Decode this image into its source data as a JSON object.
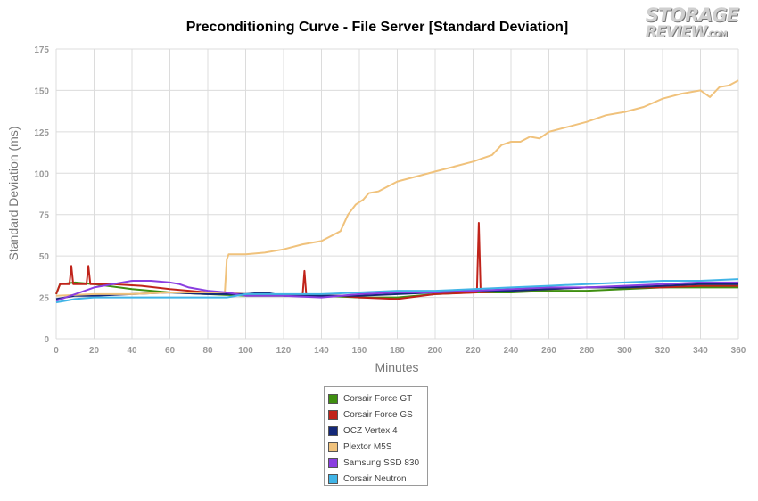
{
  "logo": {
    "line1": "STORAGE",
    "line2": "REVIEW",
    "suffix": ".COM"
  },
  "chart_data": {
    "type": "line",
    "title": "Preconditioning Curve - File Server [Standard Deviation]",
    "xlabel": "Minutes",
    "ylabel": "Standard Deviation (ms)",
    "xlim": [
      0,
      360
    ],
    "ylim": [
      0,
      175
    ],
    "xticks": [
      0,
      20,
      40,
      60,
      80,
      100,
      120,
      140,
      160,
      180,
      200,
      220,
      240,
      260,
      280,
      300,
      320,
      340,
      360
    ],
    "yticks": [
      0,
      25,
      50,
      75,
      100,
      125,
      150,
      175
    ],
    "grid": true,
    "legend_position": "bottom",
    "series": [
      {
        "name": "Corsair Force GT",
        "color": "#3f8f10",
        "points": [
          [
            0,
            27
          ],
          [
            2,
            33
          ],
          [
            10,
            34
          ],
          [
            20,
            33
          ],
          [
            40,
            30
          ],
          [
            60,
            28
          ],
          [
            80,
            27
          ],
          [
            100,
            26
          ],
          [
            120,
            26
          ],
          [
            140,
            26
          ],
          [
            160,
            25
          ],
          [
            180,
            25
          ],
          [
            200,
            27
          ],
          [
            220,
            28
          ],
          [
            240,
            28
          ],
          [
            260,
            29
          ],
          [
            280,
            29
          ],
          [
            300,
            30
          ],
          [
            320,
            31
          ],
          [
            340,
            31
          ],
          [
            360,
            31
          ]
        ]
      },
      {
        "name": "Corsair Force GS",
        "color": "#c0231a",
        "points": [
          [
            0,
            27
          ],
          [
            2,
            33
          ],
          [
            7,
            33
          ],
          [
            8,
            44
          ],
          [
            9,
            33
          ],
          [
            16,
            33
          ],
          [
            17,
            44
          ],
          [
            18,
            33
          ],
          [
            30,
            33
          ],
          [
            45,
            32
          ],
          [
            60,
            30
          ],
          [
            80,
            28
          ],
          [
            100,
            27
          ],
          [
            130,
            26
          ],
          [
            131,
            41
          ],
          [
            132,
            26
          ],
          [
            150,
            26
          ],
          [
            160,
            25
          ],
          [
            180,
            24
          ],
          [
            200,
            27
          ],
          [
            222,
            28
          ],
          [
            223,
            70
          ],
          [
            224,
            28
          ],
          [
            240,
            29
          ],
          [
            260,
            30
          ],
          [
            280,
            31
          ],
          [
            300,
            31
          ],
          [
            320,
            31
          ],
          [
            340,
            32
          ],
          [
            360,
            32
          ]
        ]
      },
      {
        "name": "OCZ Vertex 4",
        "color": "#142878",
        "points": [
          [
            0,
            24
          ],
          [
            10,
            26
          ],
          [
            20,
            26
          ],
          [
            40,
            27
          ],
          [
            60,
            28
          ],
          [
            80,
            27
          ],
          [
            100,
            27
          ],
          [
            110,
            28
          ],
          [
            120,
            26
          ],
          [
            140,
            26
          ],
          [
            160,
            26
          ],
          [
            180,
            27
          ],
          [
            200,
            28
          ],
          [
            220,
            29
          ],
          [
            240,
            29
          ],
          [
            260,
            30
          ],
          [
            280,
            31
          ],
          [
            300,
            31
          ],
          [
            320,
            32
          ],
          [
            340,
            33
          ],
          [
            360,
            33
          ]
        ]
      },
      {
        "name": "Plextor M5S",
        "color": "#f0c27c",
        "points": [
          [
            0,
            26
          ],
          [
            20,
            27
          ],
          [
            40,
            27
          ],
          [
            60,
            28
          ],
          [
            80,
            28
          ],
          [
            89,
            28
          ],
          [
            90,
            48
          ],
          [
            91,
            51
          ],
          [
            100,
            51
          ],
          [
            110,
            52
          ],
          [
            120,
            54
          ],
          [
            130,
            57
          ],
          [
            140,
            59
          ],
          [
            145,
            62
          ],
          [
            150,
            65
          ],
          [
            154,
            75
          ],
          [
            158,
            81
          ],
          [
            162,
            84
          ],
          [
            165,
            88
          ],
          [
            170,
            89
          ],
          [
            175,
            92
          ],
          [
            180,
            95
          ],
          [
            190,
            98
          ],
          [
            200,
            101
          ],
          [
            210,
            104
          ],
          [
            220,
            107
          ],
          [
            225,
            109
          ],
          [
            230,
            111
          ],
          [
            235,
            117
          ],
          [
            240,
            119
          ],
          [
            245,
            119
          ],
          [
            250,
            122
          ],
          [
            255,
            121
          ],
          [
            260,
            125
          ],
          [
            270,
            128
          ],
          [
            280,
            131
          ],
          [
            290,
            135
          ],
          [
            300,
            137
          ],
          [
            310,
            140
          ],
          [
            320,
            145
          ],
          [
            330,
            148
          ],
          [
            340,
            150
          ],
          [
            345,
            146
          ],
          [
            350,
            152
          ],
          [
            355,
            153
          ],
          [
            360,
            156
          ]
        ]
      },
      {
        "name": "Samsung SSD 830",
        "color": "#8a3ee0",
        "points": [
          [
            0,
            23
          ],
          [
            10,
            27
          ],
          [
            20,
            31
          ],
          [
            30,
            33
          ],
          [
            40,
            35
          ],
          [
            50,
            35
          ],
          [
            60,
            34
          ],
          [
            65,
            33
          ],
          [
            70,
            31
          ],
          [
            80,
            29
          ],
          [
            90,
            28
          ],
          [
            100,
            26
          ],
          [
            120,
            26
          ],
          [
            140,
            25
          ],
          [
            160,
            27
          ],
          [
            180,
            28
          ],
          [
            200,
            28
          ],
          [
            220,
            29
          ],
          [
            240,
            30
          ],
          [
            260,
            31
          ],
          [
            280,
            31
          ],
          [
            300,
            32
          ],
          [
            320,
            33
          ],
          [
            340,
            34
          ],
          [
            360,
            34
          ]
        ]
      },
      {
        "name": "Corsair Neutron",
        "color": "#40b4e6",
        "points": [
          [
            0,
            22
          ],
          [
            10,
            24
          ],
          [
            20,
            25
          ],
          [
            40,
            25
          ],
          [
            60,
            25
          ],
          [
            80,
            25
          ],
          [
            90,
            25
          ],
          [
            100,
            27
          ],
          [
            120,
            27
          ],
          [
            140,
            27
          ],
          [
            160,
            28
          ],
          [
            180,
            29
          ],
          [
            200,
            29
          ],
          [
            220,
            30
          ],
          [
            240,
            31
          ],
          [
            260,
            32
          ],
          [
            280,
            33
          ],
          [
            300,
            34
          ],
          [
            320,
            35
          ],
          [
            340,
            35
          ],
          [
            360,
            36
          ]
        ]
      }
    ]
  }
}
